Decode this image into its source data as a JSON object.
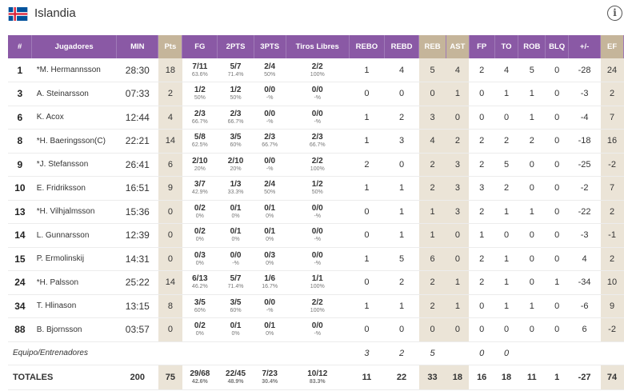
{
  "team": {
    "name": "Islandia",
    "flag_icon": "iceland-flag-icon",
    "flag_colors": {
      "blue": "#02529c",
      "white": "#ffffff",
      "red": "#dc1e35"
    }
  },
  "colors": {
    "header_purple": "#8a59a5",
    "header_gold": "#c5b59a",
    "gold_cell": "#ebe4d7"
  },
  "columns": [
    "#",
    "Jugadores",
    "MIN",
    "Pts",
    "FG",
    "2PTS",
    "3PTS",
    "Tiros Libres",
    "REBO",
    "REBD",
    "REB",
    "AST",
    "FP",
    "TO",
    "ROB",
    "BLQ",
    "+/-",
    "EF"
  ],
  "players": [
    {
      "num": "1",
      "name": "*M. Hermannsson",
      "min": "28:30",
      "pts": "18",
      "fg": "7/11",
      "fg_pct": "63.6%",
      "p2": "5/7",
      "p2_pct": "71.4%",
      "p3": "2/4",
      "p3_pct": "50%",
      "ft": "2/2",
      "ft_pct": "100%",
      "rebo": "1",
      "rebd": "4",
      "reb": "5",
      "ast": "4",
      "fp": "2",
      "to": "4",
      "rob": "5",
      "blq": "0",
      "pm": "-28",
      "ef": "24"
    },
    {
      "num": "3",
      "name": "A. Steinarsson",
      "min": "07:33",
      "pts": "2",
      "fg": "1/2",
      "fg_pct": "50%",
      "p2": "1/2",
      "p2_pct": "50%",
      "p3": "0/0",
      "p3_pct": "-%",
      "ft": "0/0",
      "ft_pct": "-%",
      "rebo": "0",
      "rebd": "0",
      "reb": "0",
      "ast": "1",
      "fp": "0",
      "to": "1",
      "rob": "1",
      "blq": "0",
      "pm": "-3",
      "ef": "2"
    },
    {
      "num": "6",
      "name": "K. Acox",
      "min": "12:44",
      "pts": "4",
      "fg": "2/3",
      "fg_pct": "66.7%",
      "p2": "2/3",
      "p2_pct": "66.7%",
      "p3": "0/0",
      "p3_pct": "-%",
      "ft": "0/0",
      "ft_pct": "-%",
      "rebo": "1",
      "rebd": "2",
      "reb": "3",
      "ast": "0",
      "fp": "0",
      "to": "0",
      "rob": "1",
      "blq": "0",
      "pm": "-4",
      "ef": "7"
    },
    {
      "num": "8",
      "name": "*H. Baeringsson(C)",
      "min": "22:21",
      "pts": "14",
      "fg": "5/8",
      "fg_pct": "62.5%",
      "p2": "3/5",
      "p2_pct": "60%",
      "p3": "2/3",
      "p3_pct": "66.7%",
      "ft": "2/3",
      "ft_pct": "66.7%",
      "rebo": "1",
      "rebd": "3",
      "reb": "4",
      "ast": "2",
      "fp": "2",
      "to": "2",
      "rob": "2",
      "blq": "0",
      "pm": "-18",
      "ef": "16"
    },
    {
      "num": "9",
      "name": "*J. Stefansson",
      "min": "26:41",
      "pts": "6",
      "fg": "2/10",
      "fg_pct": "20%",
      "p2": "2/10",
      "p2_pct": "20%",
      "p3": "0/0",
      "p3_pct": "-%",
      "ft": "2/2",
      "ft_pct": "100%",
      "rebo": "2",
      "rebd": "0",
      "reb": "2",
      "ast": "3",
      "fp": "2",
      "to": "5",
      "rob": "0",
      "blq": "0",
      "pm": "-25",
      "ef": "-2"
    },
    {
      "num": "10",
      "name": "E. Fridriksson",
      "min": "16:51",
      "pts": "9",
      "fg": "3/7",
      "fg_pct": "42.9%",
      "p2": "1/3",
      "p2_pct": "33.3%",
      "p3": "2/4",
      "p3_pct": "50%",
      "ft": "1/2",
      "ft_pct": "50%",
      "rebo": "1",
      "rebd": "1",
      "reb": "2",
      "ast": "3",
      "fp": "3",
      "to": "2",
      "rob": "0",
      "blq": "0",
      "pm": "-2",
      "ef": "7"
    },
    {
      "num": "13",
      "name": "*H. Vilhjalmsson",
      "min": "15:36",
      "pts": "0",
      "fg": "0/2",
      "fg_pct": "0%",
      "p2": "0/1",
      "p2_pct": "0%",
      "p3": "0/1",
      "p3_pct": "0%",
      "ft": "0/0",
      "ft_pct": "-%",
      "rebo": "0",
      "rebd": "1",
      "reb": "1",
      "ast": "3",
      "fp": "2",
      "to": "1",
      "rob": "1",
      "blq": "0",
      "pm": "-22",
      "ef": "2"
    },
    {
      "num": "14",
      "name": "L. Gunnarsson",
      "min": "12:39",
      "pts": "0",
      "fg": "0/2",
      "fg_pct": "0%",
      "p2": "0/1",
      "p2_pct": "0%",
      "p3": "0/1",
      "p3_pct": "0%",
      "ft": "0/0",
      "ft_pct": "-%",
      "rebo": "0",
      "rebd": "1",
      "reb": "1",
      "ast": "0",
      "fp": "1",
      "to": "0",
      "rob": "0",
      "blq": "0",
      "pm": "-3",
      "ef": "-1"
    },
    {
      "num": "15",
      "name": "P. Ermolinskij",
      "min": "14:31",
      "pts": "0",
      "fg": "0/3",
      "fg_pct": "0%",
      "p2": "0/0",
      "p2_pct": "-%",
      "p3": "0/3",
      "p3_pct": "0%",
      "ft": "0/0",
      "ft_pct": "-%",
      "rebo": "1",
      "rebd": "5",
      "reb": "6",
      "ast": "0",
      "fp": "2",
      "to": "1",
      "rob": "0",
      "blq": "0",
      "pm": "4",
      "ef": "2"
    },
    {
      "num": "24",
      "name": "*H. Palsson",
      "min": "25:22",
      "pts": "14",
      "fg": "6/13",
      "fg_pct": "46.2%",
      "p2": "5/7",
      "p2_pct": "71.4%",
      "p3": "1/6",
      "p3_pct": "16.7%",
      "ft": "1/1",
      "ft_pct": "100%",
      "rebo": "0",
      "rebd": "2",
      "reb": "2",
      "ast": "1",
      "fp": "2",
      "to": "1",
      "rob": "0",
      "blq": "1",
      "pm": "-34",
      "ef": "10"
    },
    {
      "num": "34",
      "name": "T. Hlinason",
      "min": "13:15",
      "pts": "8",
      "fg": "3/5",
      "fg_pct": "60%",
      "p2": "3/5",
      "p2_pct": "60%",
      "p3": "0/0",
      "p3_pct": "-%",
      "ft": "2/2",
      "ft_pct": "100%",
      "rebo": "1",
      "rebd": "1",
      "reb": "2",
      "ast": "1",
      "fp": "0",
      "to": "1",
      "rob": "1",
      "blq": "0",
      "pm": "-6",
      "ef": "9"
    },
    {
      "num": "88",
      "name": "B. Bjornsson",
      "min": "03:57",
      "pts": "0",
      "fg": "0/2",
      "fg_pct": "0%",
      "p2": "0/1",
      "p2_pct": "0%",
      "p3": "0/1",
      "p3_pct": "0%",
      "ft": "0/0",
      "ft_pct": "-%",
      "rebo": "0",
      "rebd": "0",
      "reb": "0",
      "ast": "0",
      "fp": "0",
      "to": "0",
      "rob": "0",
      "blq": "0",
      "pm": "6",
      "ef": "-2"
    }
  ],
  "coach": {
    "label": "Equipo/Entrenadores",
    "rebo": "3",
    "rebd": "2",
    "reb": "5",
    "fp": "0",
    "to": "0"
  },
  "totals": {
    "label": "TOTALES",
    "min": "200",
    "pts": "75",
    "fg": "29/68",
    "fg_pct": "42.6%",
    "p2": "22/45",
    "p2_pct": "48.9%",
    "p3": "7/23",
    "p3_pct": "30.4%",
    "ft": "10/12",
    "ft_pct": "83.3%",
    "rebo": "11",
    "rebd": "22",
    "reb": "33",
    "ast": "18",
    "fp": "16",
    "to": "18",
    "rob": "11",
    "blq": "1",
    "pm": "-27",
    "ef": "74"
  }
}
